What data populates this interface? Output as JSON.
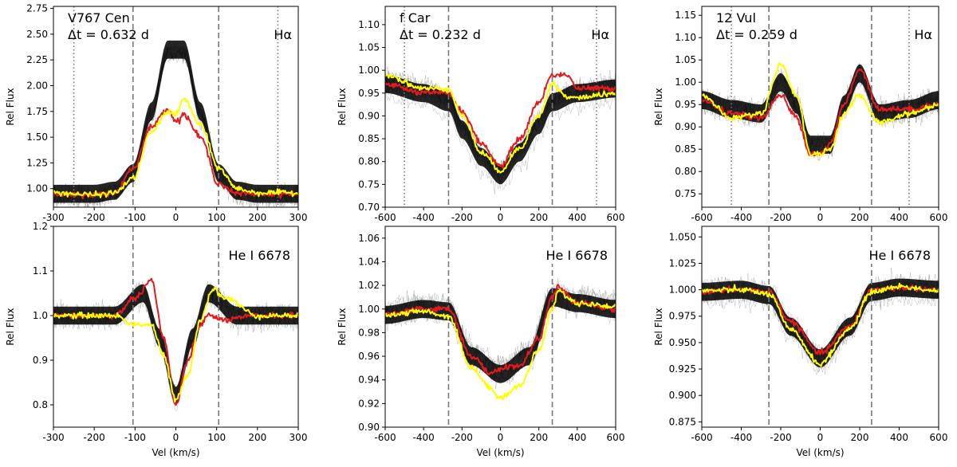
{
  "figure": {
    "xlabel": "Vel (km/s)",
    "ylabel": "Rel Flux",
    "colors": {
      "ensemble": "#000000",
      "red_spectrum": "#e41a1c",
      "yellow_spectrum": "#ffff00",
      "marker_line": "#777777"
    }
  },
  "chart_data": [
    {
      "type": "line",
      "star": "V767 Cen",
      "dt": "Δt = 0.632 d",
      "line_label": "Hα",
      "xlim": [
        -300,
        300
      ],
      "ylim": [
        0.82,
        2.77
      ],
      "xticks": [
        -300,
        -200,
        -100,
        0,
        100,
        200,
        300
      ],
      "yticks": [
        1.0,
        1.25,
        1.5,
        1.75,
        2.0,
        2.25,
        2.5,
        2.75
      ],
      "ytick_labels": [
        "1.00",
        "1.25",
        "1.50",
        "1.75",
        "2.00",
        "2.25",
        "2.50",
        "2.75"
      ],
      "dashed_lines": [
        -105,
        105
      ],
      "dotted_lines": [
        -250,
        250
      ],
      "series": [
        {
          "name": "ensemble (many epochs)",
          "x": [
            -300,
            -200,
            -150,
            -105,
            -60,
            -20,
            20,
            60,
            105,
            150,
            200,
            300
          ],
          "y": [
            0.95,
            0.95,
            0.98,
            1.15,
            1.75,
            2.35,
            2.35,
            1.75,
            1.15,
            0.98,
            0.95,
            0.95
          ]
        },
        {
          "name": "red",
          "x": [
            -300,
            -200,
            -150,
            -105,
            -60,
            -20,
            0,
            20,
            60,
            105,
            150,
            200,
            300
          ],
          "y": [
            0.94,
            0.94,
            0.96,
            1.2,
            1.6,
            1.78,
            1.65,
            1.72,
            1.5,
            1.05,
            0.95,
            0.95,
            0.95
          ]
        },
        {
          "name": "yellow",
          "x": [
            -300,
            -200,
            -150,
            -105,
            -60,
            -20,
            0,
            20,
            60,
            105,
            150,
            200,
            300
          ],
          "y": [
            0.96,
            0.94,
            0.96,
            1.1,
            1.55,
            1.75,
            1.72,
            1.87,
            1.62,
            1.2,
            1.0,
            0.96,
            0.96
          ]
        }
      ]
    },
    {
      "type": "line",
      "star": "f Car",
      "dt": "Δt = 0.232 d",
      "line_label": "Hα",
      "xlim": [
        -600,
        600
      ],
      "ylim": [
        0.7,
        1.14
      ],
      "xticks": [
        -600,
        -400,
        -200,
        0,
        200,
        400,
        600
      ],
      "yticks": [
        0.7,
        0.75,
        0.8,
        0.85,
        0.9,
        0.95,
        1.0,
        1.05,
        1.1
      ],
      "ytick_labels": [
        "0.70",
        "0.75",
        "0.80",
        "0.85",
        "0.90",
        "0.95",
        "1.00",
        "1.05",
        "1.10"
      ],
      "dashed_lines": [
        -270,
        270
      ],
      "dotted_lines": [
        -500,
        500
      ],
      "series": [
        {
          "name": "ensemble (many epochs)",
          "x": [
            -600,
            -400,
            -270,
            -200,
            -100,
            0,
            100,
            200,
            270,
            400,
            600
          ],
          "y": [
            0.97,
            0.95,
            0.93,
            0.87,
            0.81,
            0.77,
            0.82,
            0.88,
            0.93,
            0.95,
            0.96
          ]
        },
        {
          "name": "red",
          "x": [
            -600,
            -400,
            -270,
            -200,
            -100,
            0,
            100,
            200,
            270,
            350,
            400,
            600
          ],
          "y": [
            0.97,
            0.95,
            0.95,
            0.91,
            0.84,
            0.79,
            0.85,
            0.93,
            0.99,
            0.99,
            0.96,
            0.96
          ]
        },
        {
          "name": "yellow",
          "x": [
            -600,
            -400,
            -270,
            -200,
            -100,
            0,
            100,
            200,
            270,
            350,
            400,
            600
          ],
          "y": [
            0.99,
            0.96,
            0.96,
            0.9,
            0.82,
            0.78,
            0.83,
            0.9,
            0.97,
            0.94,
            0.94,
            0.95
          ]
        }
      ]
    },
    {
      "type": "line",
      "star": "12 Vul",
      "dt": "Δt = 0.259 d",
      "line_label": "Hα",
      "xlim": [
        -600,
        600
      ],
      "ylim": [
        0.72,
        1.17
      ],
      "xticks": [
        -600,
        -400,
        -200,
        0,
        200,
        400,
        600
      ],
      "yticks": [
        0.75,
        0.8,
        0.85,
        0.9,
        0.95,
        1.0,
        1.05,
        1.1,
        1.15
      ],
      "ytick_labels": [
        "0.75",
        "0.80",
        "0.85",
        "0.90",
        "0.95",
        "1.00",
        "1.05",
        "1.10",
        "1.15"
      ],
      "dashed_lines": [
        -260,
        260
      ],
      "dotted_lines": [
        -450,
        450
      ],
      "series": [
        {
          "name": "ensemble (many epochs)",
          "x": [
            -600,
            -450,
            -300,
            -200,
            -120,
            -50,
            50,
            120,
            200,
            300,
            450,
            600
          ],
          "y": [
            0.96,
            0.94,
            0.93,
            1.0,
            0.95,
            0.86,
            0.86,
            0.95,
            1.02,
            0.93,
            0.94,
            0.96
          ]
        },
        {
          "name": "red",
          "x": [
            -600,
            -450,
            -300,
            -200,
            -120,
            -50,
            0,
            50,
            120,
            200,
            300,
            450,
            600
          ],
          "y": [
            0.96,
            0.93,
            0.92,
            0.97,
            0.92,
            0.84,
            0.84,
            0.86,
            0.95,
            1.03,
            0.94,
            0.94,
            0.95
          ]
        },
        {
          "name": "yellow",
          "x": [
            -600,
            -450,
            -300,
            -200,
            -120,
            -50,
            0,
            50,
            120,
            200,
            300,
            450,
            600
          ],
          "y": [
            0.97,
            0.92,
            0.93,
            1.04,
            0.97,
            0.84,
            0.84,
            0.85,
            0.93,
            0.97,
            0.91,
            0.93,
            0.95
          ]
        }
      ]
    },
    {
      "type": "line",
      "star": "V767 Cen",
      "line_label": "He I 6678",
      "xlim": [
        -300,
        300
      ],
      "ylim": [
        0.75,
        1.2
      ],
      "xticks": [
        -300,
        -200,
        -100,
        0,
        100,
        200,
        300
      ],
      "yticks": [
        0.8,
        0.9,
        1.0,
        1.1,
        1.2
      ],
      "ytick_labels": [
        "0.8",
        "0.9",
        "1.0",
        "1.1",
        "1.2"
      ],
      "dashed_lines": [
        -105,
        105
      ],
      "dotted_lines": [],
      "series": [
        {
          "name": "ensemble (many epochs)",
          "x": [
            -300,
            -150,
            -80,
            -40,
            0,
            40,
            80,
            150,
            300
          ],
          "y": [
            1.0,
            1.0,
            1.05,
            0.95,
            0.82,
            0.95,
            1.05,
            1.0,
            1.0
          ]
        },
        {
          "name": "red",
          "x": [
            -300,
            -150,
            -100,
            -60,
            -30,
            0,
            30,
            60,
            80,
            120,
            200,
            300
          ],
          "y": [
            1.0,
            1.0,
            1.04,
            1.08,
            0.95,
            0.8,
            0.9,
            0.98,
            1.0,
            0.99,
            1.0,
            1.0
          ]
        },
        {
          "name": "yellow",
          "x": [
            -300,
            -150,
            -100,
            -60,
            -30,
            0,
            30,
            60,
            90,
            120,
            200,
            300
          ],
          "y": [
            1.0,
            1.0,
            0.98,
            0.98,
            0.91,
            0.81,
            0.87,
            0.99,
            1.06,
            1.04,
            1.0,
            1.0
          ]
        }
      ]
    },
    {
      "type": "line",
      "star": "f Car",
      "line_label": "He I 6678",
      "xlim": [
        -600,
        600
      ],
      "ylim": [
        0.9,
        1.07
      ],
      "xticks": [
        -600,
        -400,
        -200,
        0,
        200,
        400,
        600
      ],
      "yticks": [
        0.9,
        0.92,
        0.94,
        0.96,
        0.98,
        1.0,
        1.02,
        1.04,
        1.06
      ],
      "ytick_labels": [
        "0.90",
        "0.92",
        "0.94",
        "0.96",
        "0.98",
        "1.00",
        "1.02",
        "1.04",
        "1.06"
      ],
      "dashed_lines": [
        -270,
        270
      ],
      "dotted_lines": [],
      "series": [
        {
          "name": "ensemble (many epochs)",
          "x": [
            -600,
            -400,
            -270,
            -150,
            0,
            150,
            270,
            400,
            600
          ],
          "y": [
            0.995,
            1.0,
            0.998,
            0.96,
            0.945,
            0.96,
            1.01,
            1.005,
            1.0
          ]
        },
        {
          "name": "red",
          "x": [
            -600,
            -400,
            -270,
            -150,
            -50,
            0,
            100,
            200,
            270,
            300,
            400,
            600
          ],
          "y": [
            0.995,
            1.0,
            1.0,
            0.96,
            0.945,
            0.95,
            0.952,
            0.975,
            1.01,
            1.018,
            1.005,
            1.0
          ]
        },
        {
          "name": "yellow",
          "x": [
            -600,
            -400,
            -270,
            -150,
            -50,
            0,
            100,
            200,
            270,
            300,
            400,
            600
          ],
          "y": [
            0.995,
            0.998,
            0.994,
            0.95,
            0.933,
            0.925,
            0.935,
            0.965,
            1.0,
            1.015,
            1.005,
            1.002
          ]
        }
      ]
    },
    {
      "type": "line",
      "star": "12 Vul",
      "line_label": "He I 6678",
      "xlim": [
        -600,
        600
      ],
      "ylim": [
        0.87,
        1.06
      ],
      "xticks": [
        -600,
        -400,
        -200,
        0,
        200,
        400,
        600
      ],
      "yticks": [
        0.875,
        0.9,
        0.925,
        0.95,
        0.975,
        1.0,
        1.025,
        1.05
      ],
      "ytick_labels": [
        "0.875",
        "0.900",
        "0.925",
        "0.950",
        "0.975",
        "1.000",
        "1.025",
        "1.050"
      ],
      "dashed_lines": [
        -260,
        260
      ],
      "dotted_lines": [],
      "series": [
        {
          "name": "ensemble (many epochs)",
          "x": [
            -600,
            -400,
            -260,
            -150,
            0,
            150,
            260,
            400,
            600
          ],
          "y": [
            0.998,
            1.0,
            0.995,
            0.965,
            0.935,
            0.965,
            0.998,
            1.002,
            1.0
          ]
        },
        {
          "name": "red",
          "x": [
            -600,
            -400,
            -260,
            -150,
            0,
            150,
            260,
            400,
            600
          ],
          "y": [
            0.998,
            1.0,
            0.998,
            0.97,
            0.94,
            0.965,
            1.0,
            1.002,
            1.0
          ]
        },
        {
          "name": "yellow",
          "x": [
            -600,
            -400,
            -260,
            -150,
            0,
            150,
            260,
            400,
            600
          ],
          "y": [
            0.999,
            1.0,
            0.996,
            0.962,
            0.93,
            0.963,
            0.998,
            1.003,
            0.999
          ]
        }
      ]
    }
  ]
}
